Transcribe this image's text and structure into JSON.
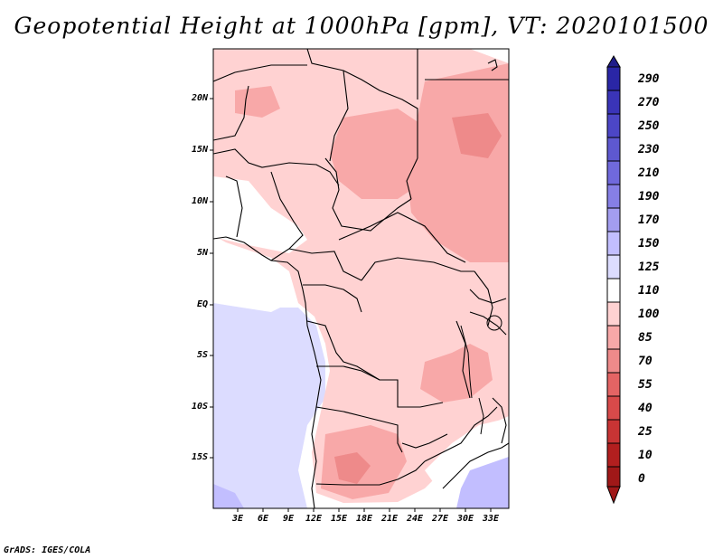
{
  "map": {
    "title": "Geopotential Height at 1000hPa [gpm], VT: 2020101500",
    "credit": "GrADS: IGES/COLA",
    "variable": "Geopotential Height",
    "level": "1000hPa",
    "units": "gpm",
    "valid_time": "2020101500",
    "lat_labels": [
      "20N",
      "15N",
      "10N",
      "5N",
      "EQ",
      "5S",
      "10S",
      "15S"
    ],
    "lon_labels": [
      "3E",
      "6E",
      "9E",
      "12E",
      "15E",
      "18E",
      "21E",
      "24E",
      "27E",
      "30E",
      "33E"
    ]
  },
  "colorbar": {
    "levels": [
      "290",
      "270",
      "250",
      "230",
      "210",
      "190",
      "170",
      "150",
      "125",
      "110",
      "100",
      "85",
      "70",
      "55",
      "40",
      "25",
      "10",
      "0"
    ],
    "colors": [
      "#1f1c8a",
      "#2a26a6",
      "#3a34b8",
      "#4c46c6",
      "#5e58d0",
      "#7069dc",
      "#867fe6",
      "#a39df0",
      "#c2beff",
      "#dcdcff",
      "#ffffff",
      "#ffd2d2",
      "#f8a8a8",
      "#ee8a8a",
      "#e46464",
      "#d84a4a",
      "#c83434",
      "#b21f1f",
      "#a01818"
    ]
  },
  "colors": {
    "ocean_low": "#dcdcff",
    "ocean_lower": "#c2beff",
    "land_neutral": "#ffffff",
    "land_85": "#ffd2d2",
    "land_70": "#f8a8a8",
    "land_55": "#ee8a8a",
    "border": "#000000"
  }
}
